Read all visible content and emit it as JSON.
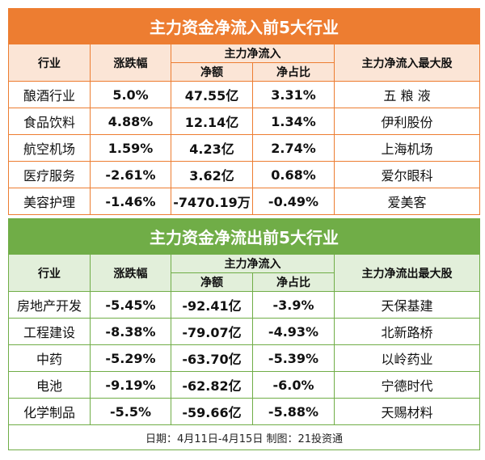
{
  "inflow": {
    "title": "主力资金净流入前5大行业",
    "headers": {
      "industry": "行业",
      "change": "涨跌幅",
      "group": "主力净流入",
      "amount": "净额",
      "ratio": "净占比",
      "top": "主力净流入最大股"
    },
    "rows": [
      [
        "酿酒行业",
        "5.0%",
        "47.55亿",
        "3.31%",
        "五 粮 液"
      ],
      [
        "食品饮料",
        "4.88%",
        "12.14亿",
        "1.34%",
        "伊利股份"
      ],
      [
        "航空机场",
        "1.59%",
        "4.23亿",
        "2.74%",
        "上海机场"
      ],
      [
        "医疗服务",
        "-2.61%",
        "3.62亿",
        "0.68%",
        "爱尔眼科"
      ],
      [
        "美容护理",
        "-1.46%",
        "-7470.19万",
        "-0.49%",
        "爱美客"
      ]
    ]
  },
  "outflow": {
    "title": "主力资金净流出前5大行业",
    "headers": {
      "industry": "行业",
      "change": "涨跌幅",
      "group": "主力净流入",
      "amount": "净额",
      "ratio": "净占比",
      "top": "主力净流出最大股"
    },
    "rows": [
      [
        "房地产开发",
        "-5.45%",
        "-92.41亿",
        "-3.9%",
        "天保基建"
      ],
      [
        "工程建设",
        "-8.38%",
        "-79.07亿",
        "-4.93%",
        "北新路桥"
      ],
      [
        "中药",
        "-5.29%",
        "-63.70亿",
        "-5.39%",
        "以岭药业"
      ],
      [
        "电池",
        "-9.19%",
        "-62.82亿",
        "-6.0%",
        "宁德时代"
      ],
      [
        "化学制品",
        "-5.5%",
        "-59.66亿",
        "-5.88%",
        "天赐材料"
      ]
    ]
  },
  "footer": "日期：4月11日-4月15日 制图：21投资通",
  "colors": {
    "inflow": "#ed7d31",
    "outflow": "#70ad47"
  }
}
